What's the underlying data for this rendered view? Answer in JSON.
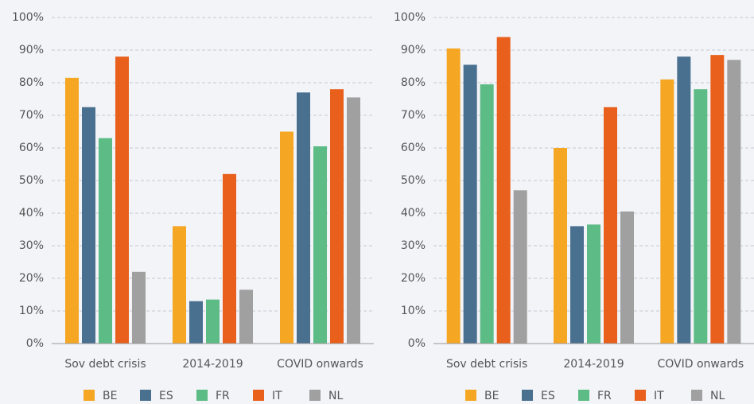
{
  "chart_data": [
    {
      "type": "bar",
      "categories": [
        "Sov debt crisis",
        "2014-2019",
        "COVID onwards"
      ],
      "series": [
        {
          "name": "BE",
          "color": "#f5a623",
          "values": [
            81.5,
            36,
            65
          ]
        },
        {
          "name": "ES",
          "color": "#4a7090",
          "values": [
            72.5,
            13,
            77
          ]
        },
        {
          "name": "FR",
          "color": "#5dbb85",
          "values": [
            63,
            13.5,
            60.5
          ]
        },
        {
          "name": "IT",
          "color": "#e8601c",
          "values": [
            88,
            52,
            78
          ]
        },
        {
          "name": "NL",
          "color": "#a0a0a0",
          "values": [
            22,
            16.5,
            75.5
          ]
        }
      ],
      "ylim": [
        0,
        100
      ],
      "yticks": [
        {
          "value": 0,
          "label": "0%"
        },
        {
          "value": 10,
          "label": "10%"
        },
        {
          "value": 20,
          "label": "20%"
        },
        {
          "value": 30,
          "label": "30%"
        },
        {
          "value": 40,
          "label": "40%"
        },
        {
          "value": 50,
          "label": "50%"
        },
        {
          "value": 60,
          "label": "60%"
        },
        {
          "value": 70,
          "label": "70%"
        },
        {
          "value": 80,
          "label": "80%"
        },
        {
          "value": 90,
          "label": "90%"
        },
        {
          "value": 100,
          "label": "100%"
        }
      ],
      "grid": true,
      "legend": "bottom"
    },
    {
      "type": "bar",
      "categories": [
        "Sov debt crisis",
        "2014-2019",
        "COVID onwards"
      ],
      "series": [
        {
          "name": "BE",
          "color": "#f5a623",
          "values": [
            90.5,
            60,
            81
          ]
        },
        {
          "name": "ES",
          "color": "#4a7090",
          "values": [
            85.5,
            36,
            88
          ]
        },
        {
          "name": "FR",
          "color": "#5dbb85",
          "values": [
            79.5,
            36.5,
            78
          ]
        },
        {
          "name": "IT",
          "color": "#e8601c",
          "values": [
            94,
            72.5,
            88.5
          ]
        },
        {
          "name": "NL",
          "color": "#a0a0a0",
          "values": [
            47,
            40.5,
            87
          ]
        }
      ],
      "ylim": [
        0,
        100
      ],
      "yticks": [
        {
          "value": 0,
          "label": "0%"
        },
        {
          "value": 10,
          "label": "10%"
        },
        {
          "value": 20,
          "label": "20%"
        },
        {
          "value": 30,
          "label": "30%"
        },
        {
          "value": 40,
          "label": "40%"
        },
        {
          "value": 50,
          "label": "50%"
        },
        {
          "value": 60,
          "label": "60%"
        },
        {
          "value": 70,
          "label": "70%"
        },
        {
          "value": 80,
          "label": "80%"
        },
        {
          "value": 90,
          "label": "90%"
        },
        {
          "value": 100,
          "label": "100%"
        }
      ],
      "grid": true,
      "legend": "bottom"
    }
  ]
}
